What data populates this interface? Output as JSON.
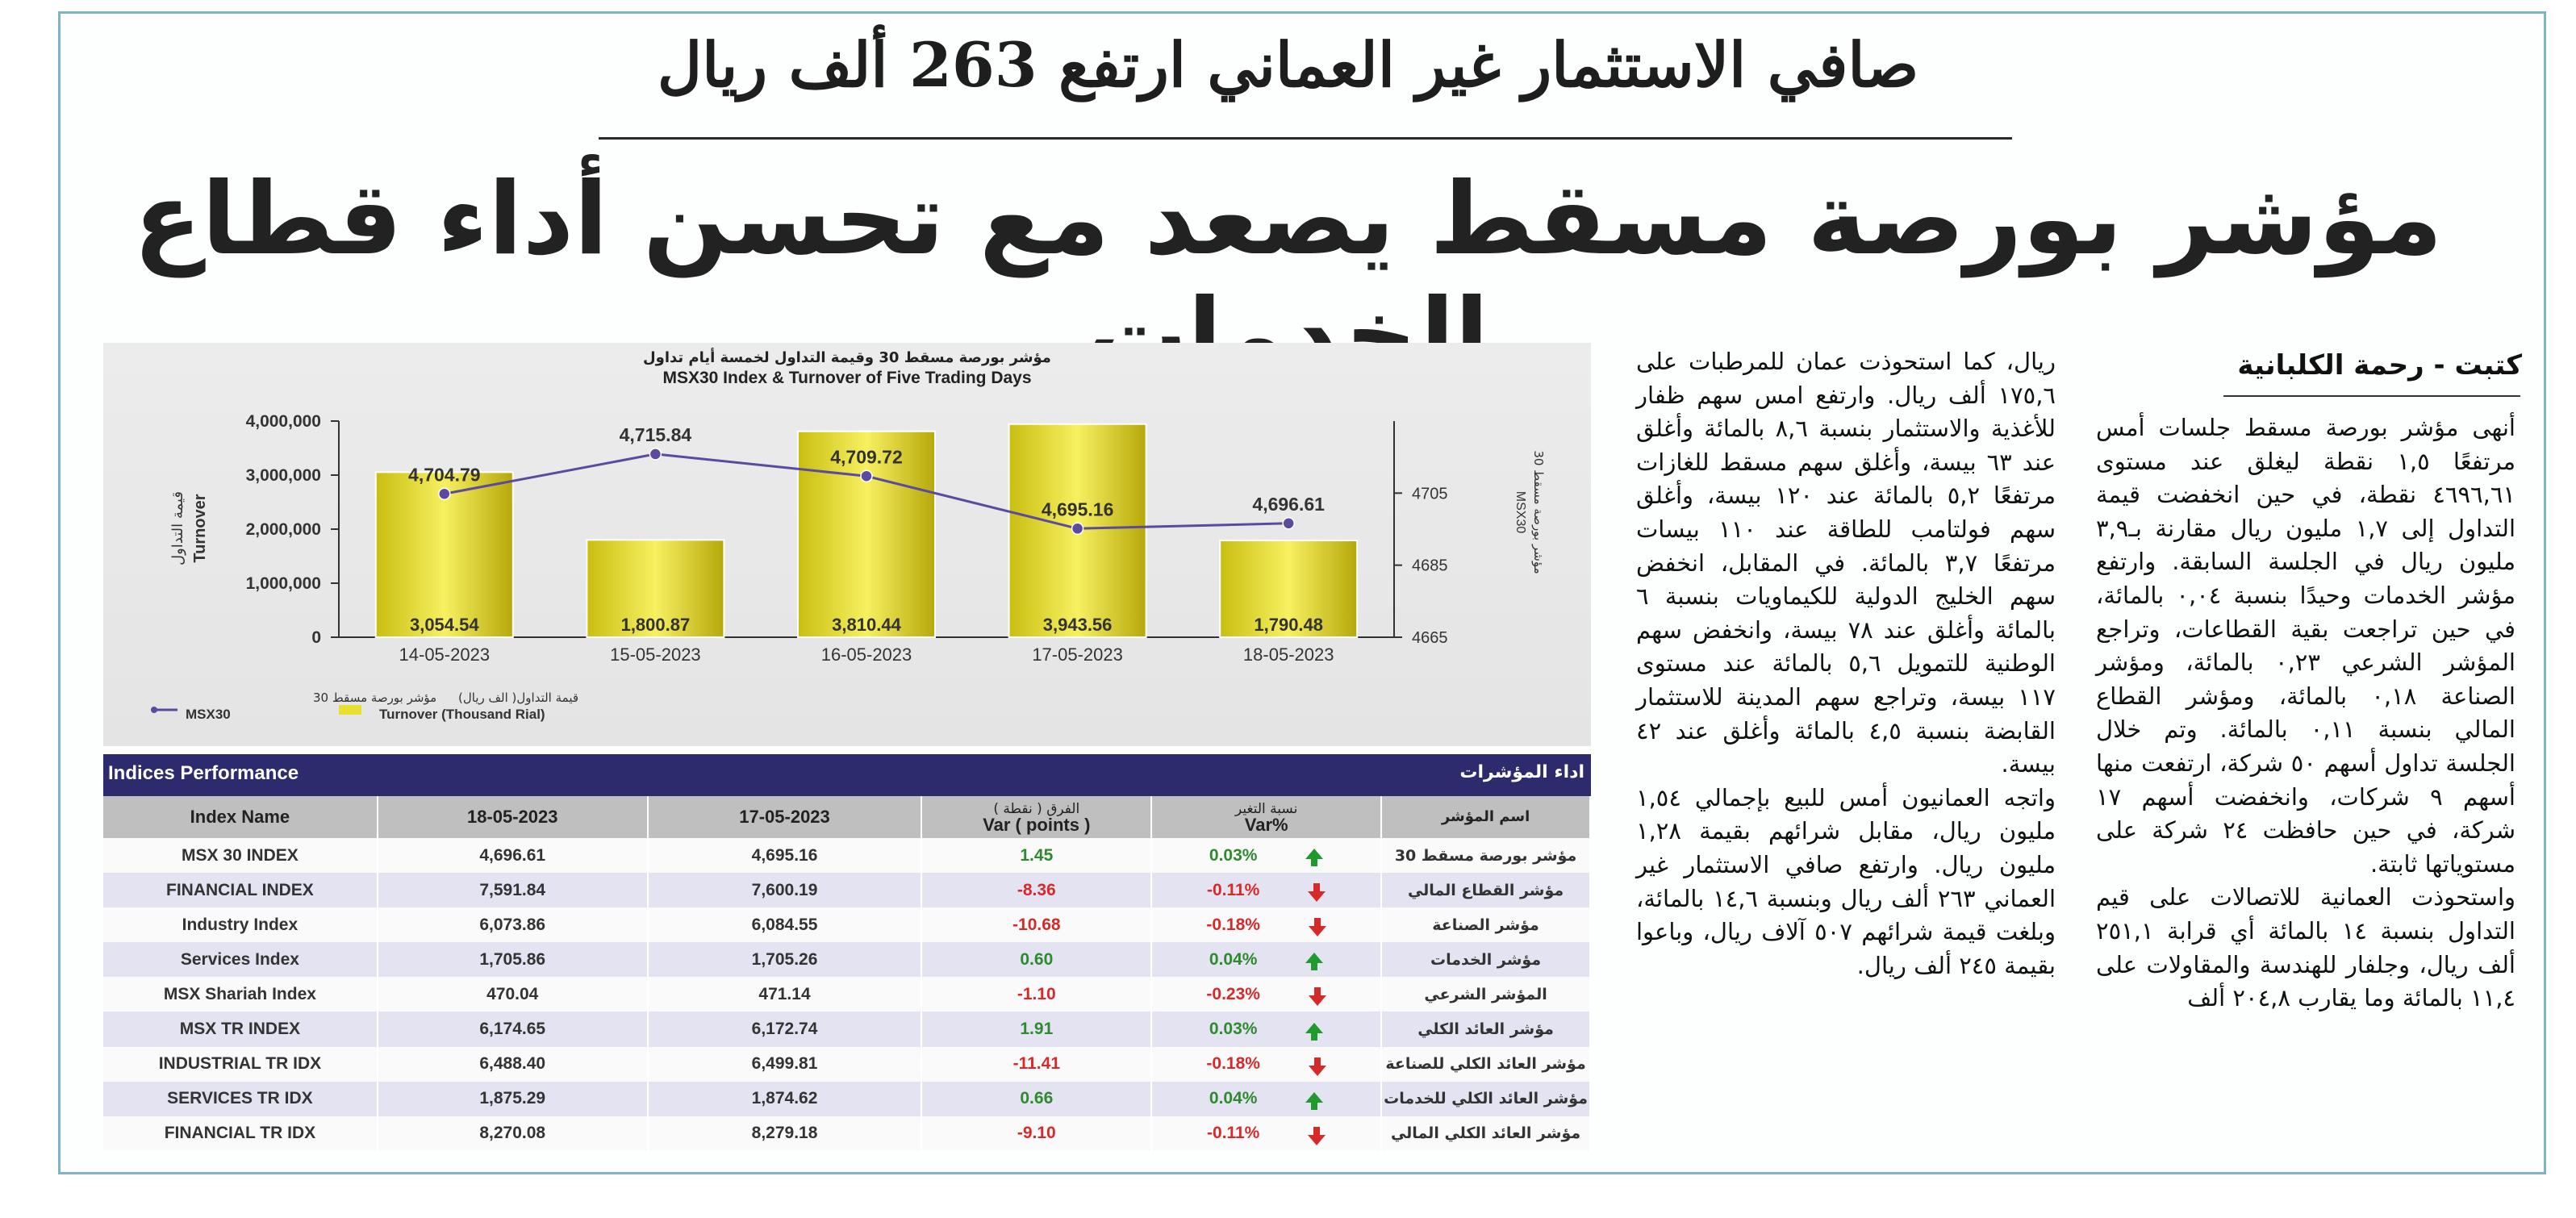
{
  "article": {
    "kicker": "صافي الاستثمار غير العماني ارتفع 263 ألف ريال",
    "headline": "مؤشر بورصة مسقط يصعد مع تحسن أداء قطاع الخدمات",
    "byline": "كتبت - رحمة الكلبانية",
    "col_right": "أنهى مؤشر بورصة مسقط جلسات أمس مرتفعًا ١,٥ نقطة ليغلق عند مستوى ٤٦٩٦,٦١ نقطة، في حين انخفضت قيمة التداول إلى ١,٧ مليون ريال مقارنة بـ٣,٩ مليون ريال في الجلسة السابقة. وارتفع مؤشر الخدمات وحيدًا بنسبة ٠,٠٤ بالمائة، في حين تراجعت بقية القطاعات، وتراجع المؤشر الشرعي ٠,٢٣ بالمائة، ومؤشر الصناعة ٠,١٨ بالمائة، ومؤشر القطاع المالي بنسبة ٠,١١ بالمائة. وتم خلال الجلسة تداول أسهم ٥٠ شركة، ارتفعت منها أسهم ٩ شركات، وانخفضت أسهم ١٧ شركة، في حين حافظت ٢٤ شركة على مستوياتها ثابتة.",
    "col_right_2": "واستحوذت العمانية للاتصالات على قيم التداول بنسبة ١٤ بالمائة أي قرابة ٢٥١,١ ألف ريال، وجلفار للهندسة والمقاولات على ١١,٤ بالمائة وما يقارب ٢٠٤,٨ ألف",
    "col_left": "ريال، كما استحوذت عمان للمرطبات على ١٧٥,٦ ألف ريال. وارتفع امس سهم ظفار للأغذية والاستثمار بنسبة ٨,٦ بالمائة وأغلق عند ٦٣ بيسة، وأغلق سهم مسقط للغازات مرتفعًا ٥,٢ بالمائة عند ١٢٠ بيسة، وأغلق سهم فولتامب للطاقة عند ١١٠ بيسات مرتفعًا ٣,٧ بالمائة. في المقابل، انخفض سهم الخليج الدولية للكيماويات بنسبة ٦ بالمائة وأغلق عند ٧٨ بيسة، وانخفض سهم الوطنية للتمويل ٥,٦ بالمائة عند مستوى ١١٧ بيسة، وتراجع سهم المدينة للاستثمار القابضة بنسبة ٤,٥ بالمائة وأغلق عند ٤٢ بيسة.",
    "col_left_2": "واتجه العمانيون أمس للبيع بإجمالي ١,٥٤ مليون ريال، مقابل شرائهم بقيمة ١,٢٨ مليون ريال. وارتفع صافي الاستثمار غير العماني ٢٦٣ ألف ريال وبنسبة ١٤,٦ بالمائة، وبلغت قيمة شرائهم ٥٠٧ آلاف ريال، وباعوا بقيمة ٢٤٥ ألف ريال."
  },
  "colors": {
    "navy": "#2e2a6e",
    "bar": "#e8e030",
    "line": "#5b4a9e",
    "up": "#1f9a2c",
    "down": "#d42a2a"
  },
  "chart_data": {
    "type": "bar",
    "title_ar": "مؤشر بورصة مسقط 30 وقيمة التداول لخمسة أيام تداول",
    "title": "MSX30 Index & Turnover of Five Trading Days",
    "categories": [
      "14-05-2023",
      "15-05-2023",
      "16-05-2023",
      "17-05-2023",
      "18-05-2023"
    ],
    "ylabel": "Turnover",
    "ylabel_ar": "قيمة التداول",
    "y2label": "MSX30",
    "y2label_ar": "مؤشر بورصة مسقط 30",
    "ylim": [
      0,
      4000000
    ],
    "yticks": [
      "4,000,000",
      "3,000,000",
      "2,000,000",
      "1,000,000",
      "0"
    ],
    "y2lim": [
      4665,
      4725
    ],
    "y2ticks": [
      "4705",
      "4685",
      "4665"
    ],
    "series": [
      {
        "name": "Turnover (Thousand Rial)",
        "name_ar": "قيمة التداول( الف ريال)",
        "type": "bar",
        "values": [
          3054.54,
          1800.87,
          3810.44,
          3943.56,
          1790.48
        ],
        "labels": [
          "3,054.54",
          "1,800.87",
          "3,810.44",
          "3,943.56",
          "1,790.48"
        ]
      },
      {
        "name": "MSX30",
        "name_ar": "مؤشر بورصة مسقط 30",
        "type": "line",
        "values": [
          4704.79,
          4715.84,
          4709.72,
          4695.16,
          4696.61
        ],
        "labels": [
          "4,704.79",
          "4,715.84",
          "4,709.72",
          "4,695.16",
          "4,696.61"
        ]
      }
    ]
  },
  "table": {
    "title": "Indices Performance",
    "title_ar": "اداء المؤشرات",
    "headers": {
      "name": "Index Name",
      "d1": "18-05-2023",
      "d2": "17-05-2023",
      "var_ar": "الفرق ( نقطة )",
      "var": "Var ( points )",
      "pct_ar": "نسبة التغير",
      "pct": "Var%",
      "name_ar": "اسم المؤشر"
    },
    "rows": [
      {
        "name": "MSX 30 INDEX",
        "d1": "4,696.61",
        "d2": "4,695.16",
        "var": "1.45",
        "pct": "0.03%",
        "dir": "up",
        "ar": "مؤشر بورصة مسقط 30"
      },
      {
        "name": "FINANCIAL INDEX",
        "d1": "7,591.84",
        "d2": "7,600.19",
        "var": "-8.36",
        "pct": "-0.11%",
        "dir": "down",
        "ar": "مؤشر القطاع المالي"
      },
      {
        "name": "Industry Index",
        "d1": "6,073.86",
        "d2": "6,084.55",
        "var": "-10.68",
        "pct": "-0.18%",
        "dir": "down",
        "ar": "مؤشر الصناعة"
      },
      {
        "name": "Services Index",
        "d1": "1,705.86",
        "d2": "1,705.26",
        "var": "0.60",
        "pct": "0.04%",
        "dir": "up",
        "ar": "مؤشر الخدمات"
      },
      {
        "name": "MSX Shariah Index",
        "d1": "470.04",
        "d2": "471.14",
        "var": "-1.10",
        "pct": "-0.23%",
        "dir": "down",
        "ar": "المؤشر الشرعي"
      },
      {
        "name": "MSX TR INDEX",
        "d1": "6,174.65",
        "d2": "6,172.74",
        "var": "1.91",
        "pct": "0.03%",
        "dir": "up",
        "ar": "مؤشر العائد الكلي"
      },
      {
        "name": "INDUSTRIAL TR IDX",
        "d1": "6,488.40",
        "d2": "6,499.81",
        "var": "-11.41",
        "pct": "-0.18%",
        "dir": "down",
        "ar": "مؤشر العائد الكلي للصناعة"
      },
      {
        "name": "SERVICES TR IDX",
        "d1": "1,875.29",
        "d2": "1,874.62",
        "var": "0.66",
        "pct": "0.04%",
        "dir": "up",
        "ar": "مؤشر العائد الكلي للخدمات"
      },
      {
        "name": "FINANCIAL TR IDX",
        "d1": "8,270.08",
        "d2": "8,279.18",
        "var": "-9.10",
        "pct": "-0.11%",
        "dir": "down",
        "ar": "مؤشر العائد الكلي المالي"
      }
    ]
  }
}
